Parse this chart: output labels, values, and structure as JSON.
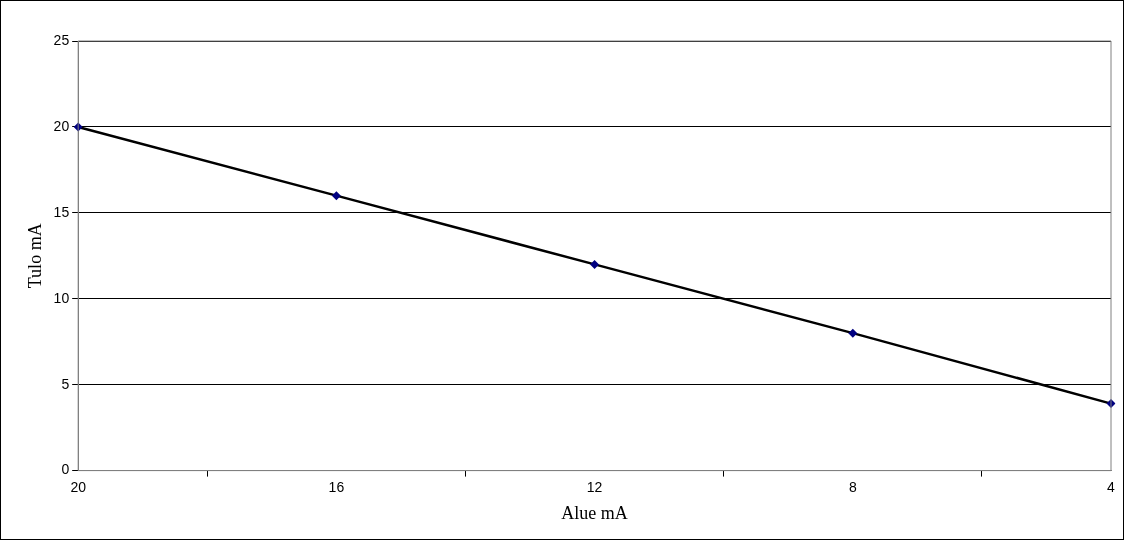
{
  "chart_data": {
    "type": "line",
    "xlabel": "Alue mA",
    "ylabel": "Tulo mA",
    "categories": [
      "20",
      "16",
      "12",
      "8",
      "4"
    ],
    "series": [
      {
        "color": "#000000",
        "values": [
          20,
          16,
          12,
          8,
          3.9
        ]
      }
    ],
    "ylim": [
      0,
      25
    ],
    "yticks": [
      0,
      5,
      10,
      15,
      20,
      25
    ],
    "grid": "y",
    "legend": false,
    "marker": "diamond",
    "line_style": "solid"
  }
}
